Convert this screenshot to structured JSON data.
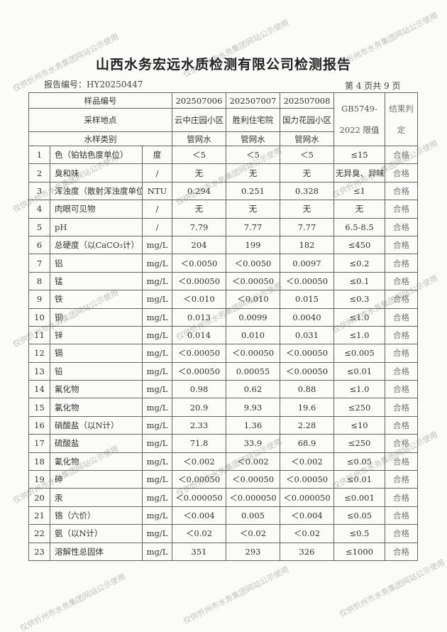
{
  "title": "山西水务宏远水质检测有限公司检测报告",
  "report_no": "报告编号：HY20250447",
  "page_info": "第 4 页共 9 页",
  "watermark": "仅供忻州市水务集团网站公示使用",
  "header": {
    "sample_no_label": "样品编号",
    "location_label": "采样地点",
    "type_label": "水样类别",
    "standard_label": "GB5749-2022 限值",
    "result_label": "结果判定",
    "samples": [
      {
        "no": "202507006",
        "location": "云中庄园小区",
        "type": "管网水"
      },
      {
        "no": "202507007",
        "location": "胜利住宅院",
        "type": "管网水"
      },
      {
        "no": "202507008",
        "location": "国力花园小区",
        "type": "管网水"
      }
    ]
  },
  "rows": [
    {
      "n": "1",
      "item": "色（铂钴色度单位）",
      "unit": "度",
      "v": [
        "＜5",
        "＜5",
        "＜5"
      ],
      "limit": "≤15",
      "result": "合格"
    },
    {
      "n": "2",
      "item": "臭和味",
      "unit": "/",
      "v": [
        "无",
        "无",
        "无"
      ],
      "limit": "无异臭、异味",
      "result": "合格"
    },
    {
      "n": "3",
      "item": "浑浊度（散射浑浊度单位）",
      "unit": "NTU",
      "v": [
        "0.294",
        "0.251",
        "0.328"
      ],
      "limit": "≤1",
      "result": "合格"
    },
    {
      "n": "4",
      "item": "肉眼可见物",
      "unit": "/",
      "v": [
        "无",
        "无",
        "无"
      ],
      "limit": "无",
      "result": "合格"
    },
    {
      "n": "5",
      "item": "pH",
      "unit": "/",
      "v": [
        "7.79",
        "7.77",
        "7.77"
      ],
      "limit": "6.5-8.5",
      "result": "合格"
    },
    {
      "n": "6",
      "item": "总硬度（以CaCO₃计）",
      "unit": "mg/L",
      "v": [
        "204",
        "199",
        "182"
      ],
      "limit": "≤450",
      "result": "合格"
    },
    {
      "n": "7",
      "item": "铝",
      "unit": "mg/L",
      "v": [
        "＜0.0050",
        "＜0.0050",
        "0.0097"
      ],
      "limit": "≤0.2",
      "result": "合格"
    },
    {
      "n": "8",
      "item": "锰",
      "unit": "mg/L",
      "v": [
        "＜0.00050",
        "＜0.00050",
        "＜0.00050"
      ],
      "limit": "≤0.1",
      "result": "合格"
    },
    {
      "n": "9",
      "item": "铁",
      "unit": "mg/L",
      "v": [
        "＜0.010",
        "＜0.010",
        "0.015"
      ],
      "limit": "≤0.3",
      "result": "合格"
    },
    {
      "n": "10",
      "item": "铜",
      "unit": "mg/L",
      "v": [
        "0.013",
        "0.0099",
        "0.0040"
      ],
      "limit": "≤1.0",
      "result": "合格"
    },
    {
      "n": "11",
      "item": "锌",
      "unit": "mg/L",
      "v": [
        "0.014",
        "0.010",
        "0.031"
      ],
      "limit": "≤1.0",
      "result": "合格"
    },
    {
      "n": "12",
      "item": "镉",
      "unit": "mg/L",
      "v": [
        "＜0.00050",
        "＜0.00050",
        "＜0.00050"
      ],
      "limit": "≤0.005",
      "result": "合格"
    },
    {
      "n": "13",
      "item": "铅",
      "unit": "mg/L",
      "v": [
        "＜0.00050",
        "0.00055",
        "＜0.00050"
      ],
      "limit": "≤0.01",
      "result": "合格"
    },
    {
      "n": "14",
      "item": "氟化物",
      "unit": "mg/L",
      "v": [
        "0.98",
        "0.62",
        "0.88"
      ],
      "limit": "≤1.0",
      "result": "合格"
    },
    {
      "n": "15",
      "item": "氯化物",
      "unit": "mg/L",
      "v": [
        "20.9",
        "9.93",
        "19.6"
      ],
      "limit": "≤250",
      "result": "合格"
    },
    {
      "n": "16",
      "item": "硝酸盐（以N计）",
      "unit": "mg/L",
      "v": [
        "2.33",
        "1.36",
        "2.28"
      ],
      "limit": "≤10",
      "result": "合格"
    },
    {
      "n": "17",
      "item": "硫酸盐",
      "unit": "mg/L",
      "v": [
        "71.8",
        "33.9",
        "68.9"
      ],
      "limit": "≤250",
      "result": "合格"
    },
    {
      "n": "18",
      "item": "氰化物",
      "unit": "mg/L",
      "v": [
        "＜0.002",
        "＜0.002",
        "＜0.002"
      ],
      "limit": "≤0.05",
      "result": "合格"
    },
    {
      "n": "19",
      "item": "砷",
      "unit": "mg/L",
      "v": [
        "＜0.00050",
        "＜0.00050",
        "＜0.00050"
      ],
      "limit": "≤0.01",
      "result": "合格"
    },
    {
      "n": "20",
      "item": "汞",
      "unit": "mg/L",
      "v": [
        "＜0.000050",
        "＜0.000050",
        "＜0.000050"
      ],
      "limit": "≤0.001",
      "result": "合格"
    },
    {
      "n": "21",
      "item": "铬（六价）",
      "unit": "mg/L",
      "v": [
        "＜0.004",
        "0.005",
        "＜0.004"
      ],
      "limit": "≤0.05",
      "result": "合格"
    },
    {
      "n": "22",
      "item": "氨（以N计）",
      "unit": "mg/L",
      "v": [
        "＜0.02",
        "＜0.02",
        "＜0.02"
      ],
      "limit": "≤0.5",
      "result": "合格"
    },
    {
      "n": "23",
      "item": "溶解性总固体",
      "unit": "mg/L",
      "v": [
        "351",
        "293",
        "326"
      ],
      "limit": "≤1000",
      "result": "合格"
    }
  ]
}
